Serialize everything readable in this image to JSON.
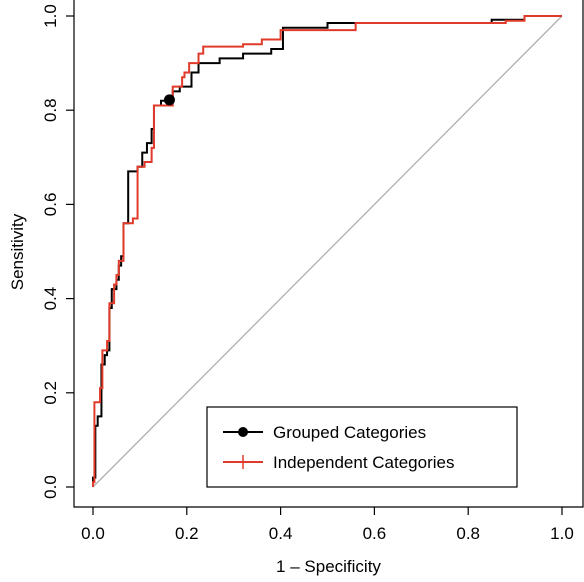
{
  "chart_data": {
    "type": "line",
    "xlabel": "1 – Specificity",
    "ylabel": "Sensitivity",
    "xlim": [
      0,
      1
    ],
    "ylim": [
      0,
      1
    ],
    "x_ticks": [
      "0.0",
      "0.2",
      "0.4",
      "0.6",
      "0.8",
      "1.0"
    ],
    "y_ticks": [
      "0.0",
      "0.2",
      "0.4",
      "0.6",
      "0.8",
      "1.0"
    ],
    "grid": false,
    "legend_position": "bottom-right",
    "reference_line": {
      "from": [
        0,
        0
      ],
      "to": [
        1,
        1
      ],
      "color": "#b0b0b0"
    },
    "marked_point": {
      "series": "Grouped Categories",
      "x": 0.163,
      "y": 0.822
    },
    "series": [
      {
        "name": "Grouped Categories",
        "color": "#000000",
        "marker": "dot",
        "points": [
          [
            0.0,
            0.0
          ],
          [
            0.0,
            0.02
          ],
          [
            0.005,
            0.02
          ],
          [
            0.005,
            0.13
          ],
          [
            0.01,
            0.13
          ],
          [
            0.01,
            0.15
          ],
          [
            0.018,
            0.15
          ],
          [
            0.018,
            0.26
          ],
          [
            0.025,
            0.26
          ],
          [
            0.025,
            0.28
          ],
          [
            0.03,
            0.28
          ],
          [
            0.03,
            0.29
          ],
          [
            0.035,
            0.29
          ],
          [
            0.035,
            0.38
          ],
          [
            0.04,
            0.38
          ],
          [
            0.04,
            0.42
          ],
          [
            0.05,
            0.42
          ],
          [
            0.05,
            0.44
          ],
          [
            0.055,
            0.44
          ],
          [
            0.055,
            0.47
          ],
          [
            0.06,
            0.47
          ],
          [
            0.06,
            0.49
          ],
          [
            0.065,
            0.49
          ],
          [
            0.065,
            0.56
          ],
          [
            0.075,
            0.56
          ],
          [
            0.075,
            0.67
          ],
          [
            0.095,
            0.67
          ],
          [
            0.095,
            0.68
          ],
          [
            0.105,
            0.68
          ],
          [
            0.105,
            0.71
          ],
          [
            0.115,
            0.71
          ],
          [
            0.115,
            0.73
          ],
          [
            0.125,
            0.73
          ],
          [
            0.125,
            0.76
          ],
          [
            0.13,
            0.76
          ],
          [
            0.13,
            0.81
          ],
          [
            0.145,
            0.81
          ],
          [
            0.145,
            0.82
          ],
          [
            0.17,
            0.82
          ],
          [
            0.17,
            0.84
          ],
          [
            0.185,
            0.84
          ],
          [
            0.185,
            0.85
          ],
          [
            0.21,
            0.85
          ],
          [
            0.21,
            0.88
          ],
          [
            0.225,
            0.88
          ],
          [
            0.225,
            0.9
          ],
          [
            0.27,
            0.9
          ],
          [
            0.27,
            0.91
          ],
          [
            0.32,
            0.91
          ],
          [
            0.32,
            0.92
          ],
          [
            0.38,
            0.92
          ],
          [
            0.38,
            0.93
          ],
          [
            0.405,
            0.93
          ],
          [
            0.405,
            0.975
          ],
          [
            0.5,
            0.975
          ],
          [
            0.5,
            0.985
          ],
          [
            0.85,
            0.985
          ],
          [
            0.85,
            0.992
          ],
          [
            0.92,
            0.992
          ],
          [
            0.92,
            1.0
          ],
          [
            1.0,
            1.0
          ]
        ]
      },
      {
        "name": "Independent Categories",
        "color": "#e03a2b",
        "marker": "plus",
        "points": [
          [
            0.0,
            0.0
          ],
          [
            0.0,
            0.01
          ],
          [
            0.003,
            0.01
          ],
          [
            0.003,
            0.18
          ],
          [
            0.015,
            0.18
          ],
          [
            0.015,
            0.21
          ],
          [
            0.02,
            0.21
          ],
          [
            0.02,
            0.29
          ],
          [
            0.03,
            0.29
          ],
          [
            0.03,
            0.31
          ],
          [
            0.035,
            0.31
          ],
          [
            0.035,
            0.39
          ],
          [
            0.045,
            0.39
          ],
          [
            0.045,
            0.43
          ],
          [
            0.05,
            0.43
          ],
          [
            0.05,
            0.45
          ],
          [
            0.055,
            0.45
          ],
          [
            0.055,
            0.48
          ],
          [
            0.065,
            0.48
          ],
          [
            0.065,
            0.56
          ],
          [
            0.085,
            0.56
          ],
          [
            0.085,
            0.57
          ],
          [
            0.095,
            0.57
          ],
          [
            0.095,
            0.68
          ],
          [
            0.11,
            0.68
          ],
          [
            0.11,
            0.69
          ],
          [
            0.125,
            0.69
          ],
          [
            0.125,
            0.72
          ],
          [
            0.13,
            0.72
          ],
          [
            0.13,
            0.81
          ],
          [
            0.17,
            0.81
          ],
          [
            0.17,
            0.85
          ],
          [
            0.19,
            0.85
          ],
          [
            0.19,
            0.87
          ],
          [
            0.195,
            0.87
          ],
          [
            0.195,
            0.88
          ],
          [
            0.205,
            0.88
          ],
          [
            0.205,
            0.9
          ],
          [
            0.225,
            0.9
          ],
          [
            0.225,
            0.92
          ],
          [
            0.235,
            0.92
          ],
          [
            0.235,
            0.935
          ],
          [
            0.32,
            0.935
          ],
          [
            0.32,
            0.94
          ],
          [
            0.36,
            0.94
          ],
          [
            0.36,
            0.95
          ],
          [
            0.4,
            0.95
          ],
          [
            0.4,
            0.97
          ],
          [
            0.56,
            0.97
          ],
          [
            0.56,
            0.985
          ],
          [
            0.88,
            0.985
          ],
          [
            0.88,
            0.99
          ],
          [
            0.92,
            0.99
          ],
          [
            0.92,
            1.0
          ],
          [
            1.0,
            1.0
          ]
        ]
      }
    ]
  }
}
